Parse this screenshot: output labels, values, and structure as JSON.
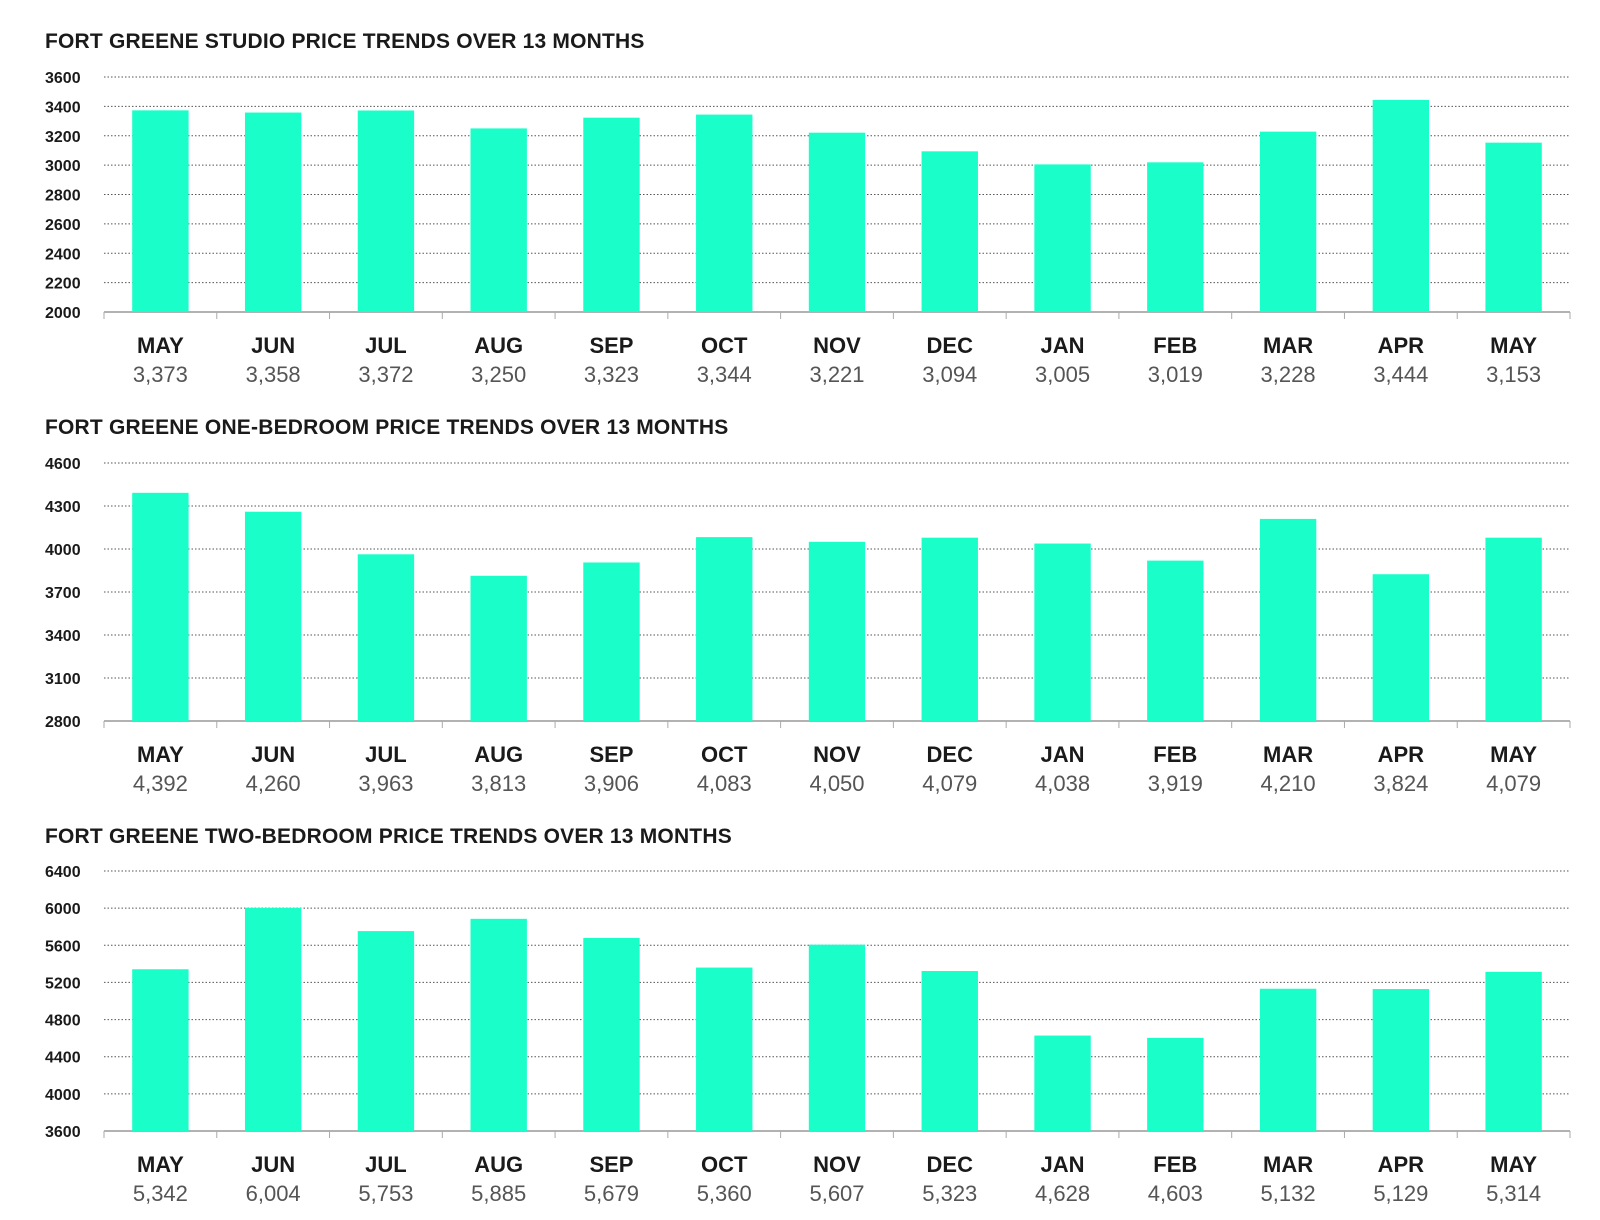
{
  "colors": {
    "bar": "#1affca",
    "text": "#1a1a1a",
    "value_text": "#555555"
  },
  "chart_data": [
    {
      "type": "bar",
      "title": "FORT GREENE STUDIO PRICE TRENDS OVER 13 MONTHS",
      "categories": [
        "MAY",
        "JUN",
        "JUL",
        "AUG",
        "SEP",
        "OCT",
        "NOV",
        "DEC",
        "JAN",
        "FEB",
        "MAR",
        "APR",
        "MAY"
      ],
      "values": [
        3373,
        3358,
        3372,
        3250,
        3323,
        3344,
        3221,
        3094,
        3005,
        3019,
        3228,
        3444,
        3153
      ],
      "value_labels": [
        "3,373",
        "3,358",
        "3,372",
        "3,250",
        "3,323",
        "3,344",
        "3,221",
        "3,094",
        "3,005",
        "3,019",
        "3,228",
        "3,444",
        "3,153"
      ],
      "yticks": [
        "3600",
        "3400",
        "3200",
        "3000",
        "2800",
        "2600",
        "2400",
        "2200",
        "2000"
      ],
      "ylim": [
        2000,
        3600
      ],
      "grid": true
    },
    {
      "type": "bar",
      "title": "FORT GREENE ONE-BEDROOM PRICE TRENDS OVER 13 MONTHS",
      "categories": [
        "MAY",
        "JUN",
        "JUL",
        "AUG",
        "SEP",
        "OCT",
        "NOV",
        "DEC",
        "JAN",
        "FEB",
        "MAR",
        "APR",
        "MAY"
      ],
      "values": [
        4392,
        4260,
        3963,
        3813,
        3906,
        4083,
        4050,
        4079,
        4038,
        3919,
        4210,
        3824,
        4079
      ],
      "value_labels": [
        "4,392",
        "4,260",
        "3,963",
        "3,813",
        "3,906",
        "4,083",
        "4,050",
        "4,079",
        "4,038",
        "3,919",
        "4,210",
        "3,824",
        "4,079"
      ],
      "yticks": [
        "4600",
        "4300",
        "4000",
        "3700",
        "3400",
        "3100",
        "2800"
      ],
      "ylim": [
        2800,
        4600
      ],
      "grid": true
    },
    {
      "type": "bar",
      "title": "FORT GREENE TWO-BEDROOM PRICE TRENDS OVER 13 MONTHS",
      "categories": [
        "MAY",
        "JUN",
        "JUL",
        "AUG",
        "SEP",
        "OCT",
        "NOV",
        "DEC",
        "JAN",
        "FEB",
        "MAR",
        "APR",
        "MAY"
      ],
      "values": [
        5342,
        6004,
        5753,
        5885,
        5679,
        5360,
        5607,
        5323,
        4628,
        4603,
        5132,
        5129,
        5314
      ],
      "value_labels": [
        "5,342",
        "6,004",
        "5,753",
        "5,885",
        "5,679",
        "5,360",
        "5,607",
        "5,323",
        "4,628",
        "4,603",
        "5,132",
        "5,129",
        "5,314"
      ],
      "yticks": [
        "6400",
        "6000",
        "5600",
        "5200",
        "4800",
        "4400",
        "4000",
        "3600"
      ],
      "ylim": [
        3600,
        6400
      ],
      "grid": true
    }
  ]
}
